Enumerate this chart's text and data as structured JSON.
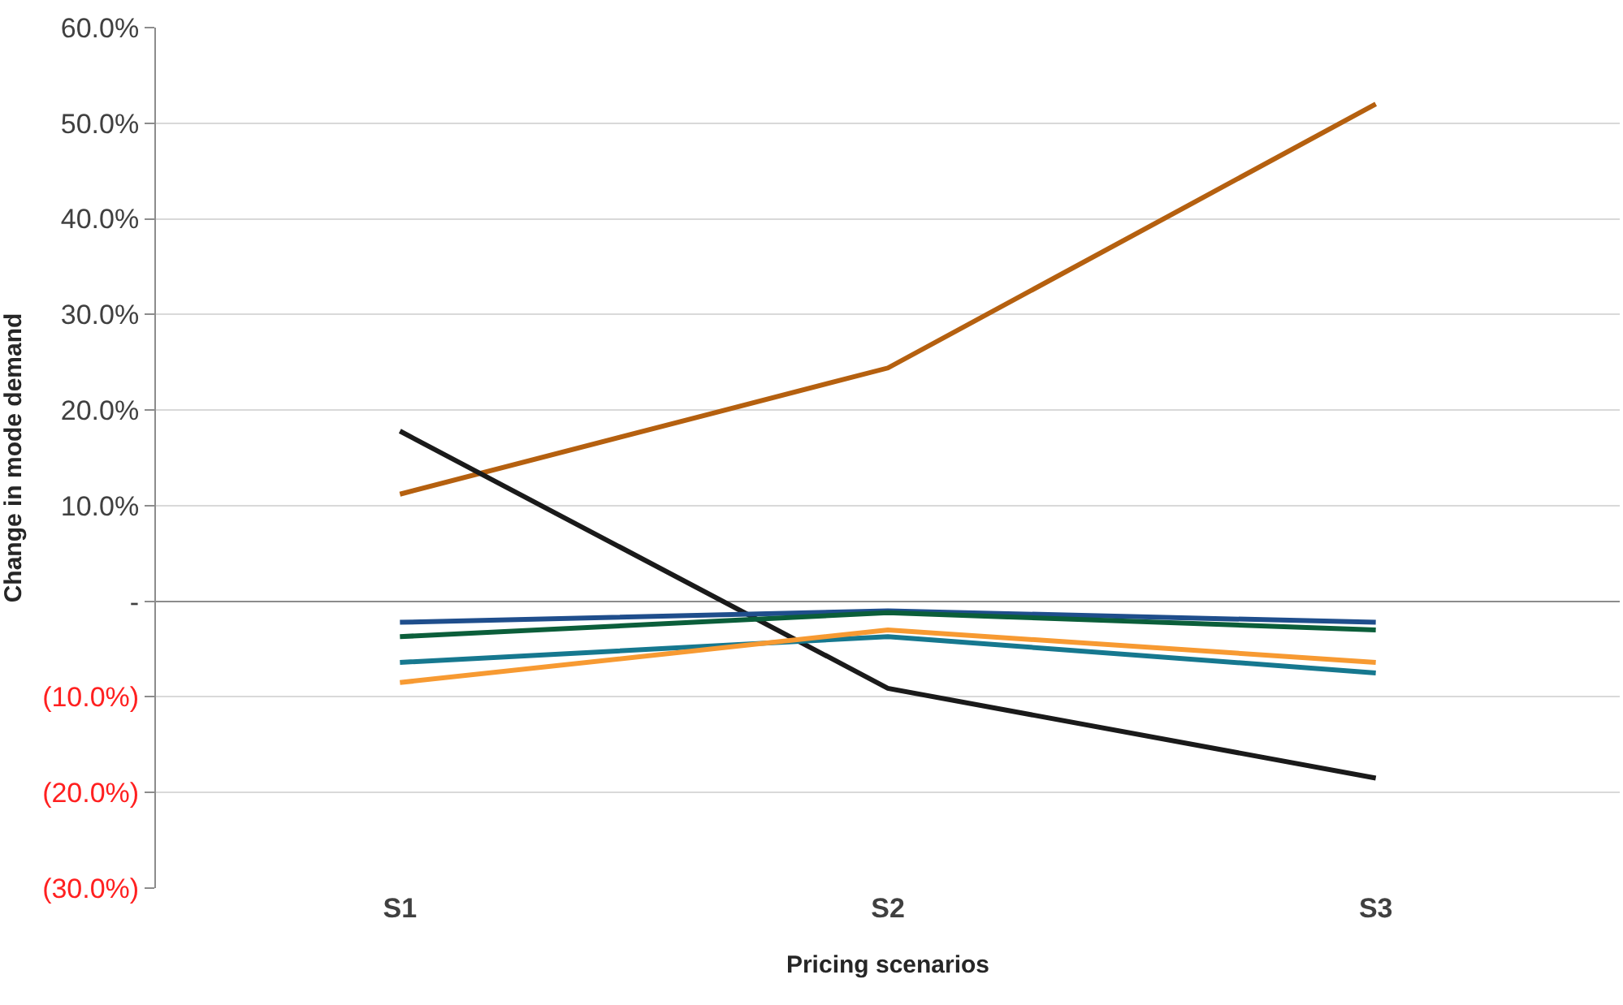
{
  "chart_data": {
    "type": "line",
    "xlabel": "Pricing scenarios",
    "ylabel": "Change in mode demand",
    "categories": [
      "S1",
      "S2",
      "S3"
    ],
    "series": [
      {
        "color": "#b5600f",
        "values": [
          11.2,
          24.4,
          52.0
        ]
      },
      {
        "color": "#1a1a1a",
        "values": [
          17.8,
          -9.1,
          -18.5
        ]
      },
      {
        "color": "#1f4e8c",
        "values": [
          -2.2,
          -1.0,
          -2.2
        ]
      },
      {
        "color": "#0b5e3a",
        "values": [
          -3.7,
          -1.2,
          -3.0
        ]
      },
      {
        "color": "#16788f",
        "values": [
          -6.4,
          -3.7,
          -7.5
        ]
      },
      {
        "color": "#f79a32",
        "values": [
          -8.5,
          -3.0,
          -6.4
        ]
      }
    ],
    "ylim": [
      -30,
      60
    ],
    "yticks": [
      {
        "value": -30,
        "label": "(30.0%)"
      },
      {
        "value": -20,
        "label": "(20.0%)"
      },
      {
        "value": -10,
        "label": "(10.0%)"
      },
      {
        "value": 0,
        "label": "-"
      },
      {
        "value": 10,
        "label": "10.0%"
      },
      {
        "value": 20,
        "label": "20.0%"
      },
      {
        "value": 30,
        "label": "30.0%"
      },
      {
        "value": 40,
        "label": "40.0%"
      },
      {
        "value": 50,
        "label": "50.0%"
      },
      {
        "value": 60,
        "label": "60.0%"
      }
    ],
    "grid": "y",
    "marker": "none",
    "line_style": "solid"
  }
}
